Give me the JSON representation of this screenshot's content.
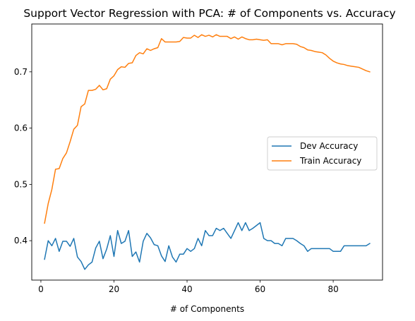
{
  "chart_data": {
    "type": "line",
    "title": "Support Vector Regression with PCA: # of Components vs. Accuracy",
    "xlabel": "# of Components",
    "ylabel": "",
    "xlim": [
      -2.5,
      93.5
    ],
    "ylim": [
      0.33,
      0.785
    ],
    "xticks": [
      0,
      20,
      40,
      60,
      80
    ],
    "yticks": [
      0.4,
      0.5,
      0.6,
      0.7
    ],
    "x": [
      1,
      2,
      3,
      4,
      5,
      6,
      7,
      8,
      9,
      10,
      11,
      12,
      13,
      14,
      15,
      16,
      17,
      18,
      19,
      20,
      21,
      22,
      23,
      24,
      25,
      26,
      27,
      28,
      29,
      30,
      31,
      32,
      33,
      34,
      35,
      36,
      37,
      38,
      39,
      40,
      41,
      42,
      43,
      44,
      45,
      46,
      47,
      48,
      49,
      50,
      51,
      52,
      53,
      54,
      55,
      56,
      57,
      58,
      59,
      60,
      61,
      62,
      63,
      64,
      65,
      66,
      67,
      68,
      69,
      70,
      71,
      72,
      73,
      74,
      75,
      76,
      77,
      78,
      79,
      80,
      81,
      82,
      83,
      84,
      85,
      86,
      87,
      88,
      89,
      90
    ],
    "series": [
      {
        "name": "Dev Accuracy",
        "color": "#1f77b4",
        "values": [
          0.367,
          0.4,
          0.391,
          0.404,
          0.381,
          0.399,
          0.399,
          0.39,
          0.404,
          0.371,
          0.363,
          0.349,
          0.357,
          0.362,
          0.387,
          0.399,
          0.368,
          0.385,
          0.409,
          0.372,
          0.418,
          0.395,
          0.399,
          0.418,
          0.372,
          0.38,
          0.362,
          0.399,
          0.413,
          0.405,
          0.393,
          0.391,
          0.373,
          0.363,
          0.391,
          0.371,
          0.362,
          0.376,
          0.376,
          0.386,
          0.381,
          0.386,
          0.404,
          0.391,
          0.418,
          0.409,
          0.409,
          0.422,
          0.418,
          0.422,
          0.413,
          0.404,
          0.418,
          0.432,
          0.418,
          0.432,
          0.418,
          0.422,
          0.427,
          0.432,
          0.404,
          0.4,
          0.4,
          0.395,
          0.395,
          0.391,
          0.404,
          0.404,
          0.404,
          0.4,
          0.395,
          0.391,
          0.381,
          0.386,
          0.386,
          0.386,
          0.386,
          0.386,
          0.386,
          0.381,
          0.381,
          0.381,
          0.391,
          0.391,
          0.391,
          0.391,
          0.391,
          0.391,
          0.391,
          0.395
        ]
      },
      {
        "name": "Train Accuracy",
        "color": "#ff7f0e",
        "values": [
          0.431,
          0.466,
          0.491,
          0.527,
          0.528,
          0.546,
          0.556,
          0.576,
          0.598,
          0.605,
          0.638,
          0.643,
          0.667,
          0.667,
          0.669,
          0.676,
          0.668,
          0.67,
          0.687,
          0.693,
          0.704,
          0.709,
          0.708,
          0.715,
          0.716,
          0.729,
          0.734,
          0.732,
          0.741,
          0.738,
          0.741,
          0.743,
          0.759,
          0.753,
          0.753,
          0.753,
          0.753,
          0.754,
          0.761,
          0.76,
          0.76,
          0.765,
          0.761,
          0.766,
          0.763,
          0.765,
          0.762,
          0.766,
          0.763,
          0.763,
          0.763,
          0.759,
          0.762,
          0.758,
          0.762,
          0.759,
          0.757,
          0.757,
          0.758,
          0.757,
          0.756,
          0.757,
          0.75,
          0.75,
          0.75,
          0.748,
          0.75,
          0.75,
          0.75,
          0.749,
          0.745,
          0.743,
          0.739,
          0.738,
          0.736,
          0.735,
          0.734,
          0.73,
          0.724,
          0.719,
          0.716,
          0.714,
          0.713,
          0.711,
          0.71,
          0.709,
          0.708,
          0.705,
          0.702,
          0.7
        ]
      }
    ],
    "legend_position": "center-right",
    "grid": false
  }
}
